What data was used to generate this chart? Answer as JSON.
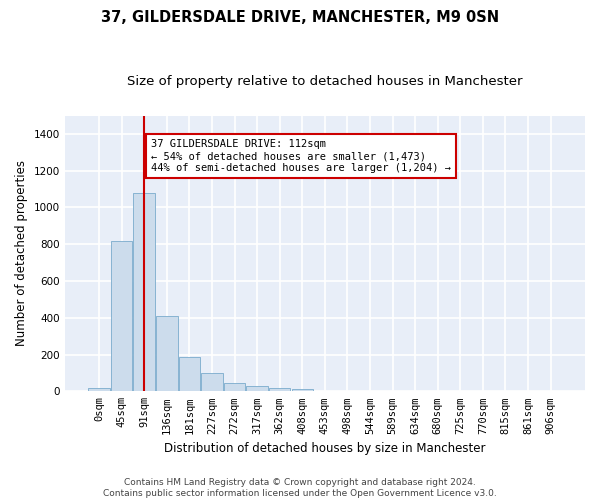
{
  "title": "37, GILDERSDALE DRIVE, MANCHESTER, M9 0SN",
  "subtitle": "Size of property relative to detached houses in Manchester",
  "xlabel": "Distribution of detached houses by size in Manchester",
  "ylabel": "Number of detached properties",
  "bar_labels": [
    "0sqm",
    "45sqm",
    "91sqm",
    "136sqm",
    "181sqm",
    "227sqm",
    "272sqm",
    "317sqm",
    "362sqm",
    "408sqm",
    "453sqm",
    "498sqm",
    "544sqm",
    "589sqm",
    "634sqm",
    "680sqm",
    "725sqm",
    "770sqm",
    "815sqm",
    "861sqm",
    "906sqm"
  ],
  "bar_heights": [
    20,
    820,
    1080,
    410,
    185,
    100,
    45,
    30,
    20,
    10,
    0,
    0,
    0,
    0,
    0,
    0,
    0,
    0,
    0,
    0,
    0
  ],
  "bar_color": "#ccdcec",
  "bar_edge_color": "#7aabcc",
  "vline_x": 2,
  "vline_color": "#cc0000",
  "annotation_line1": "37 GILDERSDALE DRIVE: 112sqm",
  "annotation_line2": "← 54% of detached houses are smaller (1,473)",
  "annotation_line3": "44% of semi-detached houses are larger (1,204) →",
  "annotation_box_facecolor": "#ffffff",
  "annotation_box_edgecolor": "#cc0000",
  "ylim": [
    0,
    1500
  ],
  "yticks": [
    0,
    200,
    400,
    600,
    800,
    1000,
    1200,
    1400
  ],
  "background_color": "#e8eef8",
  "grid_color": "#ffffff",
  "footer": "Contains HM Land Registry data © Crown copyright and database right 2024.\nContains public sector information licensed under the Open Government Licence v3.0.",
  "title_fontsize": 10.5,
  "subtitle_fontsize": 9.5,
  "xlabel_fontsize": 8.5,
  "ylabel_fontsize": 8.5,
  "footer_fontsize": 6.5,
  "tick_fontsize": 7.5,
  "annot_fontsize": 7.5
}
